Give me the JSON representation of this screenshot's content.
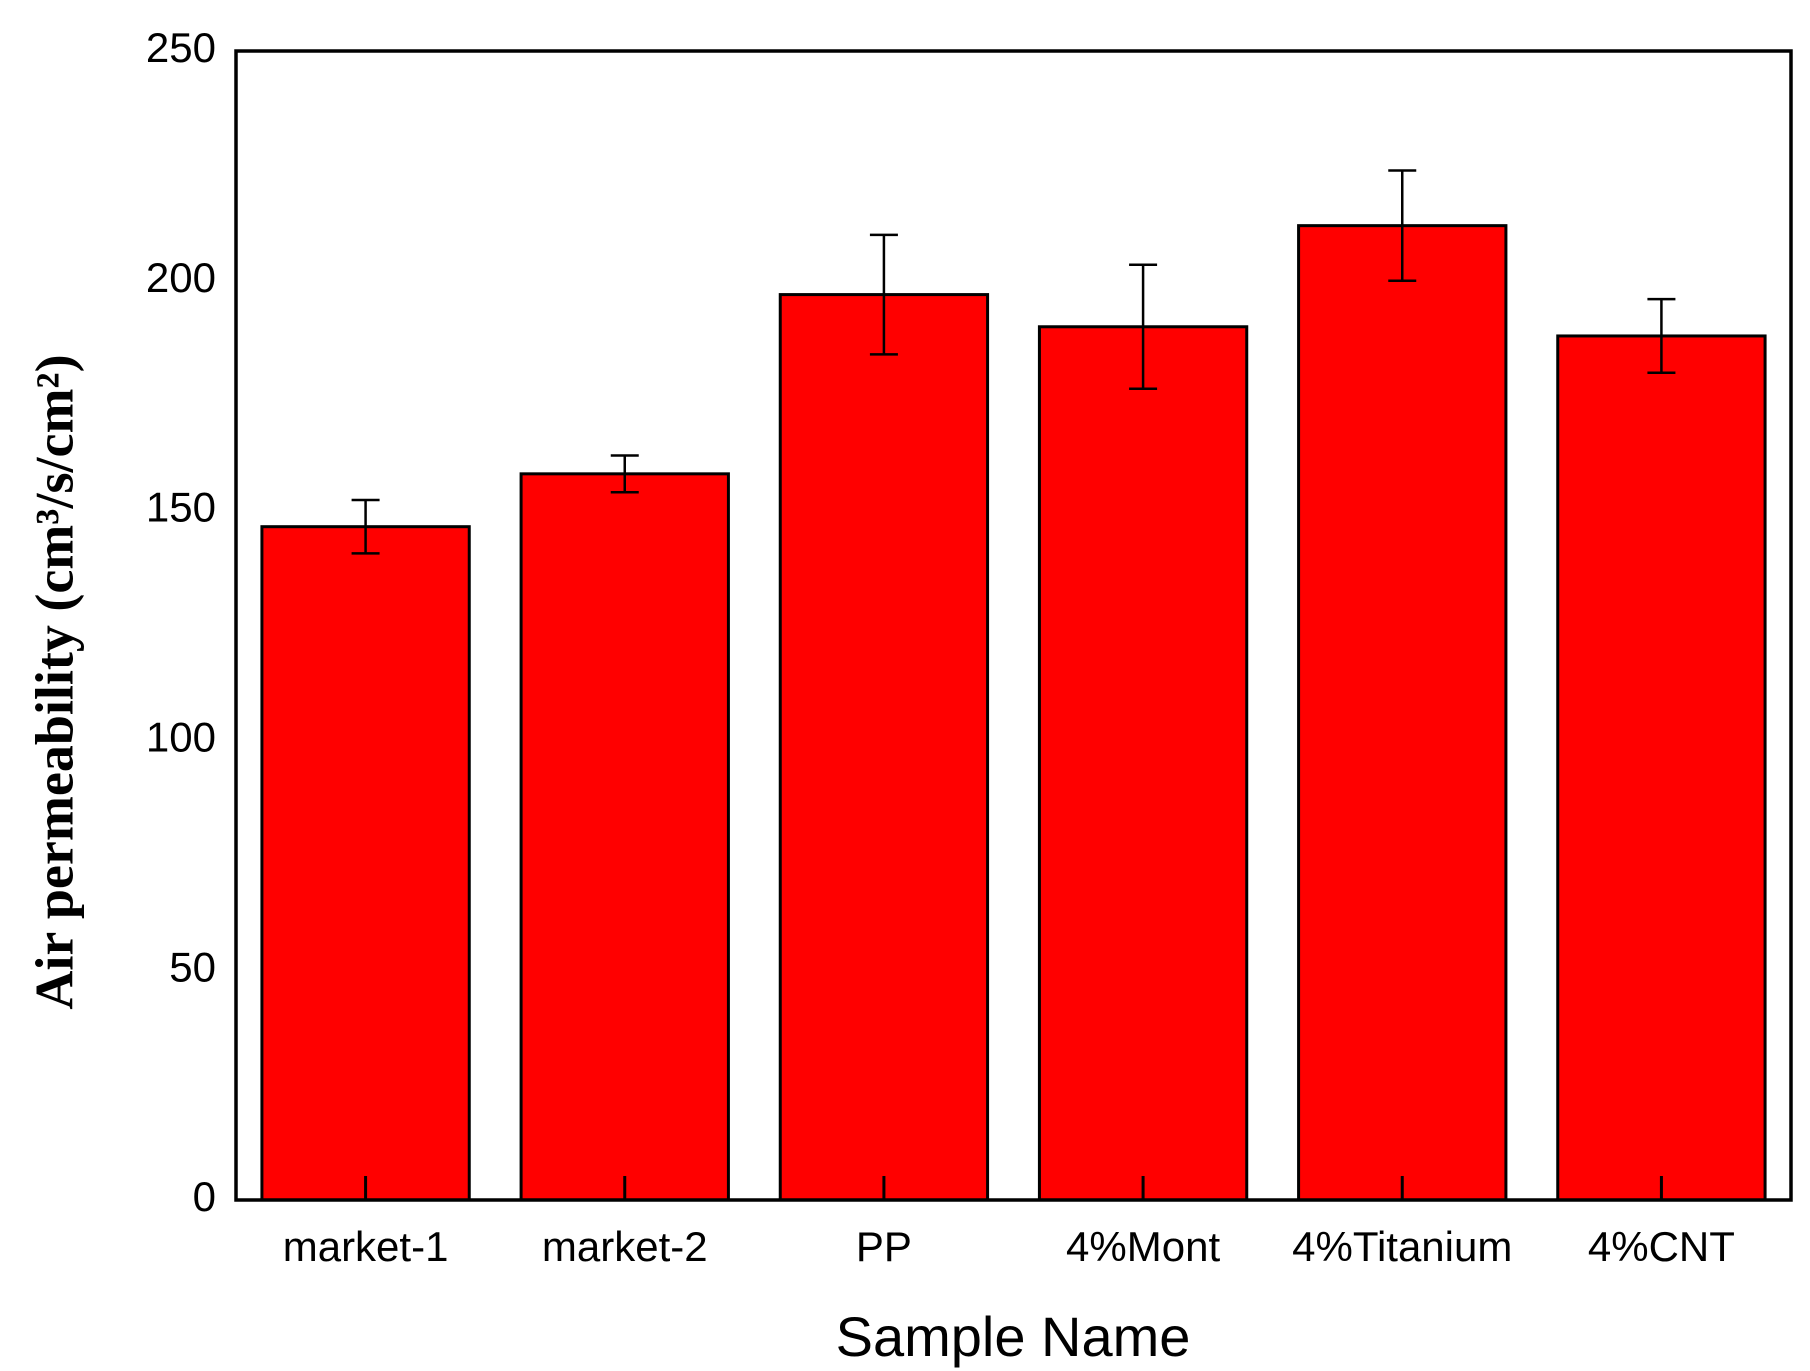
{
  "chart_data": {
    "type": "bar",
    "x_label": "Sample Name",
    "y_label": "Air permeability (cm³/s/cm²)",
    "categories": [
      "market-1",
      "market-2",
      "PP",
      "4%Mont",
      "4%Titanium",
      "4%CNT"
    ],
    "values": [
      146.5,
      158,
      197,
      190,
      212,
      188
    ],
    "errors": [
      5.8,
      4,
      13,
      13.5,
      12,
      8
    ],
    "color": "#ff0000",
    "ylim": [
      0,
      250
    ],
    "yticks": [
      0,
      50,
      100,
      150,
      200,
      250
    ],
    "grid": false
  }
}
